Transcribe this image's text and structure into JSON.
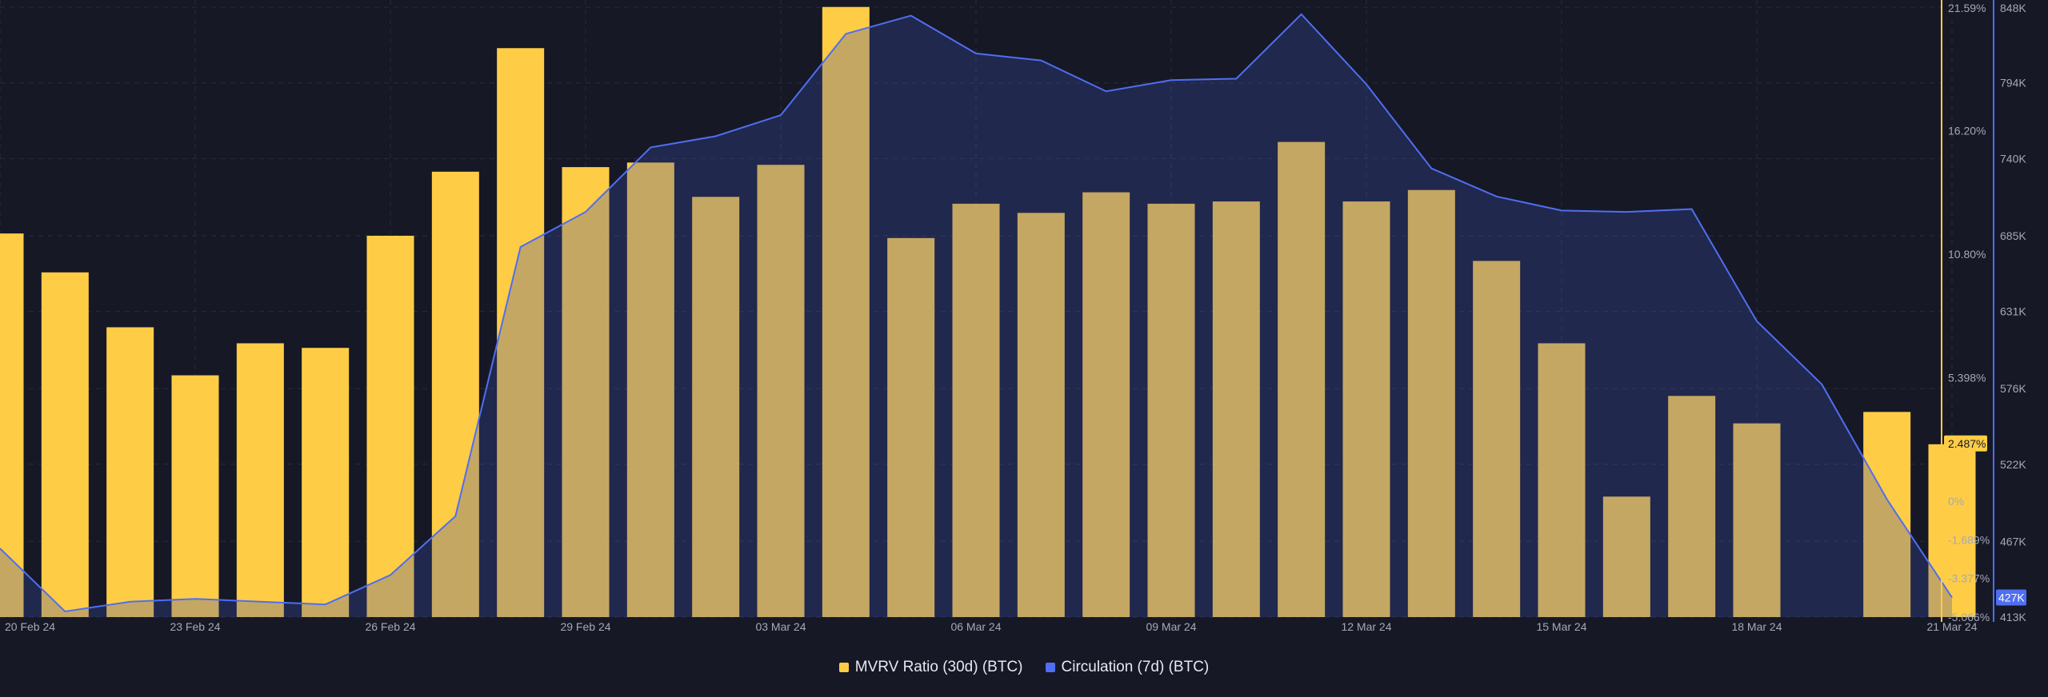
{
  "chart_data": {
    "type": "bar",
    "x": [
      "20 Feb 24",
      "21 Feb 24",
      "22 Feb 24",
      "23 Feb 24",
      "24 Feb 24",
      "25 Feb 24",
      "26 Feb 24",
      "27 Feb 24",
      "28 Feb 24",
      "29 Feb 24",
      "01 Mar 24",
      "02 Mar 24",
      "03 Mar 24",
      "04 Mar 24",
      "05 Mar 24",
      "06 Mar 24",
      "07 Mar 24",
      "08 Mar 24",
      "09 Mar 24",
      "10 Mar 24",
      "11 Mar 24",
      "12 Mar 24",
      "13 Mar 24",
      "14 Mar 24",
      "15 Mar 24",
      "16 Mar 24",
      "17 Mar 24",
      "18 Mar 24",
      "19 Mar 24",
      "20 Mar 24",
      "21 Mar 24"
    ],
    "x_tick_labels": [
      "20 Feb 24",
      "23 Feb 24",
      "26 Feb 24",
      "29 Feb 24",
      "03 Mar 24",
      "06 Mar 24",
      "09 Mar 24",
      "12 Mar 24",
      "15 Mar 24",
      "18 Mar 24",
      "21 Mar 24"
    ],
    "series": [
      {
        "name": "MVRV Ratio (30d) (BTC)",
        "type": "bar",
        "axis": "left",
        "color": "#ffcd45",
        "values": [
          11.7,
          10.0,
          7.6,
          5.5,
          6.9,
          6.7,
          11.6,
          14.4,
          19.8,
          14.6,
          14.8,
          13.3,
          14.7,
          21.6,
          11.5,
          13.0,
          12.6,
          13.5,
          13.0,
          13.1,
          15.7,
          13.1,
          13.6,
          10.5,
          6.9,
          0.2,
          4.6,
          3.4,
          null,
          3.9,
          2.487
        ]
      },
      {
        "name": "Circulation (7d) (BTC)",
        "type": "area",
        "axis": "right",
        "color": "#4f6ef2",
        "values": [
          462,
          417,
          424,
          426,
          424,
          422,
          443,
          485,
          677,
          702,
          748,
          756,
          771,
          829,
          842,
          815,
          810,
          788,
          796,
          797,
          843,
          793,
          733,
          713,
          703,
          702,
          704,
          624,
          579,
          497,
          427
        ]
      }
    ],
    "y_left": {
      "tick_labels": [
        "21.59%",
        "16.20%",
        "10.80%",
        "5.398%",
        "0%",
        "-1.689%",
        "-3.377%",
        "-5.066%"
      ],
      "ticks": [
        21.59,
        16.2,
        10.8,
        5.398,
        0,
        -1.689,
        -3.377,
        -5.066
      ],
      "ylim": [
        -5.066,
        21.59
      ],
      "current_label": "2.487%"
    },
    "y_right": {
      "tick_labels": [
        "848K",
        "794K",
        "740K",
        "685K",
        "631K",
        "576K",
        "522K",
        "467K",
        "413K"
      ],
      "ticks": [
        848,
        794,
        740,
        685,
        631,
        576,
        522,
        467,
        413
      ],
      "ylim": [
        413,
        848
      ],
      "current_label": "427K"
    },
    "grid": true,
    "legend_position": "bottom-center"
  },
  "legend": {
    "items": [
      {
        "label": "MVRV Ratio (30d) (BTC)",
        "color": "#ffcd45"
      },
      {
        "label": "Circulation (7d) (BTC)",
        "color": "#4f6ef2"
      }
    ]
  }
}
